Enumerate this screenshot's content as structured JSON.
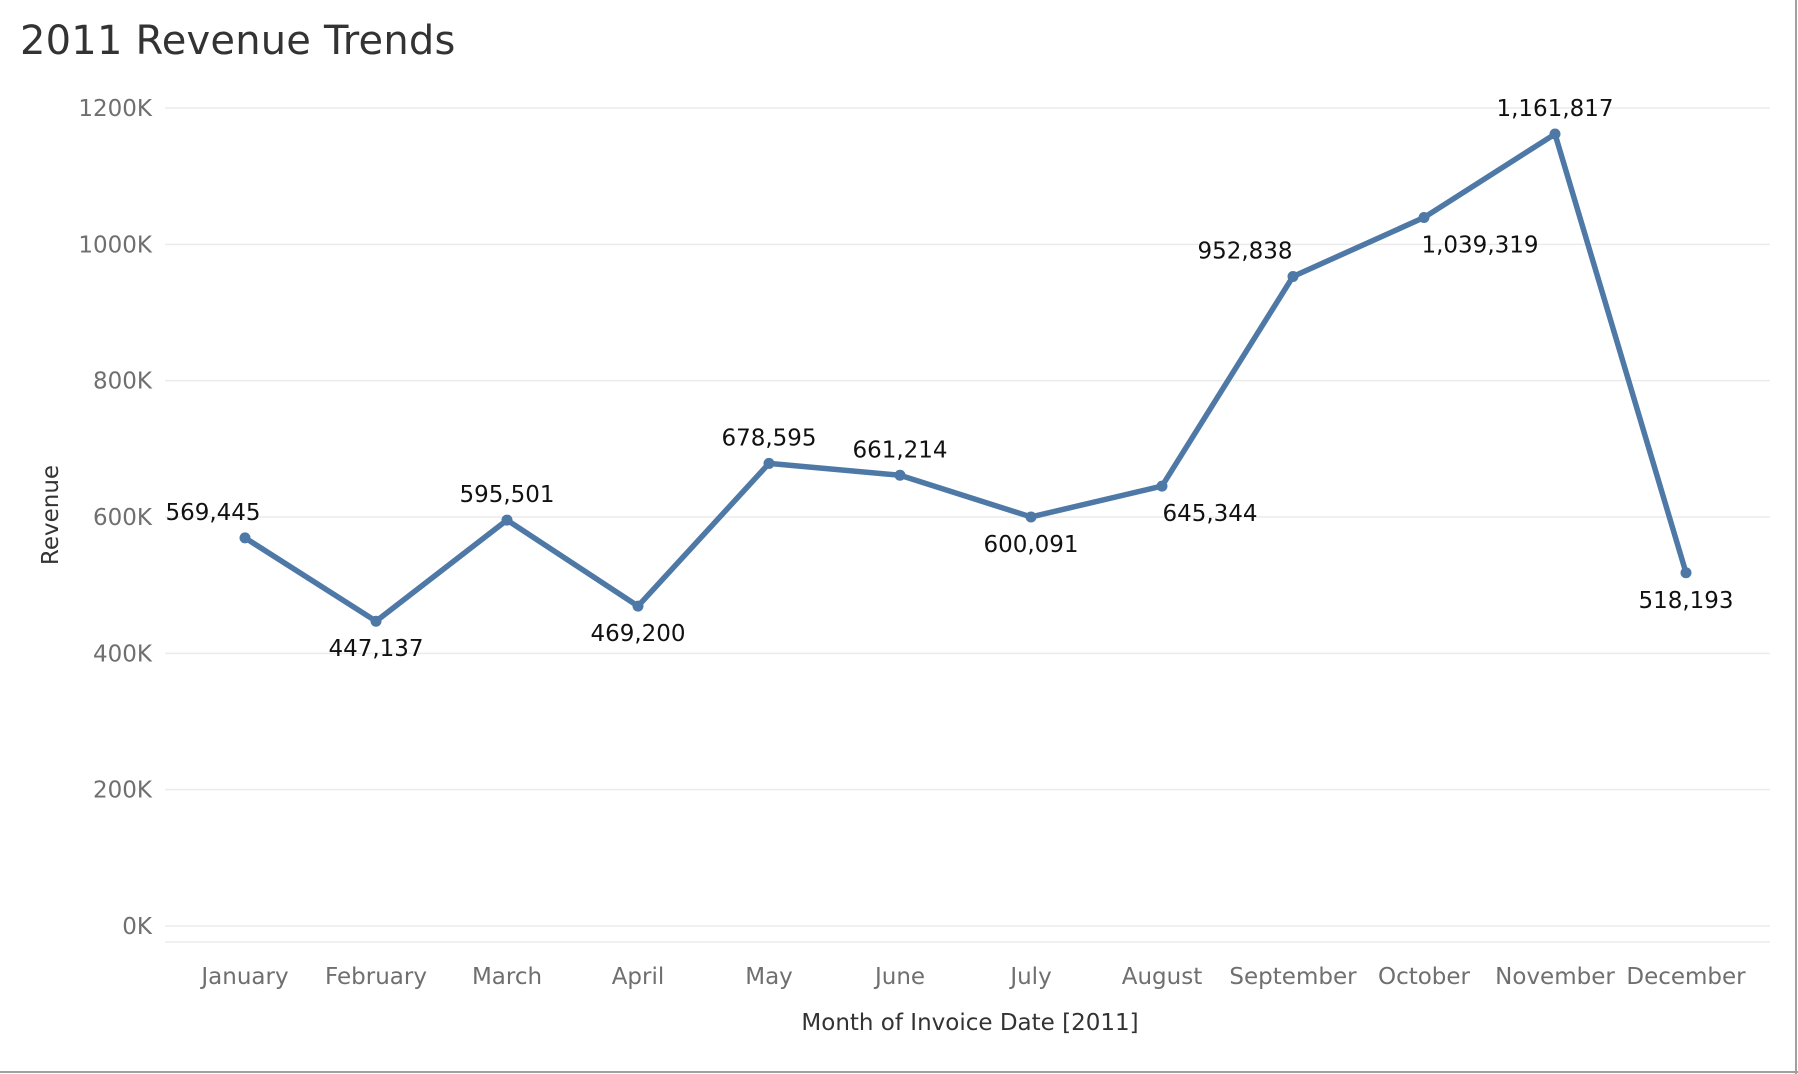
{
  "chart_data": {
    "type": "line",
    "title": "2011 Revenue Trends",
    "xlabel": "Month of Invoice Date [2011]",
    "ylabel": "Revenue",
    "categories": [
      "January",
      "February",
      "March",
      "April",
      "May",
      "June",
      "July",
      "August",
      "September",
      "October",
      "November",
      "December"
    ],
    "values": [
      569445,
      447137,
      595501,
      469200,
      678595,
      661214,
      600091,
      645344,
      952838,
      1039319,
      1161817,
      518193
    ],
    "value_labels": [
      "569,445",
      "447,137",
      "595,501",
      "469,200",
      "678,595",
      "661,214",
      "600,091",
      "645,344",
      "952,838",
      "1,039,319",
      "1,161,817",
      "518,193"
    ],
    "label_positions": [
      "above",
      "below",
      "above",
      "below",
      "above",
      "above",
      "below",
      "below",
      "above",
      "below",
      "above",
      "below"
    ],
    "y_ticks": [
      0,
      200000,
      400000,
      600000,
      800000,
      1000000,
      1200000
    ],
    "y_tick_labels": [
      "0K",
      "200K",
      "400K",
      "600K",
      "800K",
      "1000K",
      "1200K"
    ],
    "ylim": [
      0,
      1200000
    ],
    "grid": true,
    "line_color": "#4e79a7"
  }
}
